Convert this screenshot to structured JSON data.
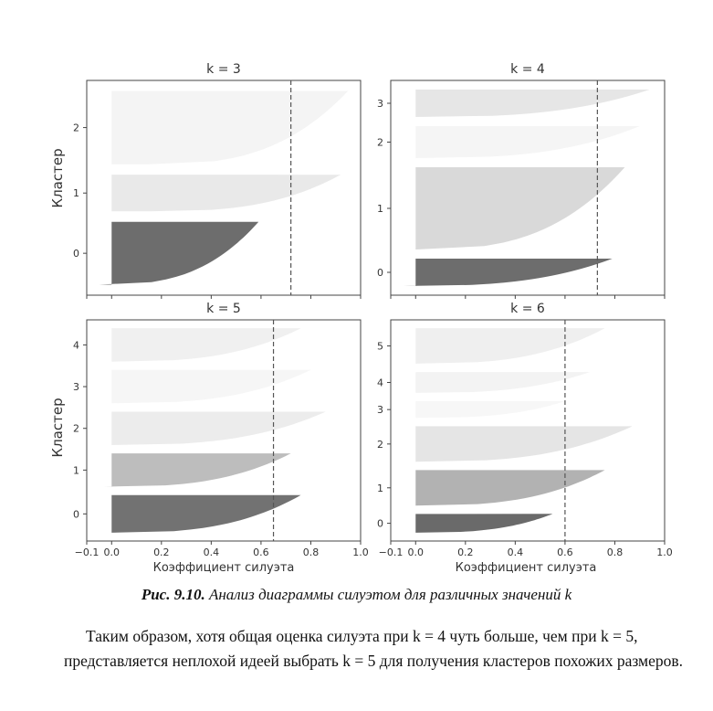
{
  "figure": {
    "caption_prefix": "Рис. 9.10.",
    "caption_text": "Анализ диаграммы силуэтом для различных значений k",
    "ylabel": "Кластер",
    "xlabel": "Коэффициент силуэта"
  },
  "chart_data": [
    {
      "type": "area",
      "title": "k = 3",
      "xlim": [
        -0.1,
        1.0
      ],
      "yticks": [
        "0",
        "1",
        "2"
      ],
      "silhouette_score": 0.72,
      "clusters": [
        {
          "label": "0",
          "size": 0.24,
          "min_coef": -0.05,
          "max_coef": 0.59,
          "shade": "#6d6d6d"
        },
        {
          "label": "1",
          "size": 0.14,
          "min_coef": 0.15,
          "max_coef": 0.92,
          "shade": "#e9e9e9"
        },
        {
          "label": "2",
          "size": 0.28,
          "min_coef": 0.15,
          "max_coef": 0.95,
          "shade": "#f4f4f4"
        }
      ]
    },
    {
      "type": "area",
      "title": "k = 4",
      "xlim": [
        -0.1,
        1.0
      ],
      "yticks": [
        "0",
        "1",
        "2",
        "3"
      ],
      "silhouette_score": 0.73,
      "clusters": [
        {
          "label": "0",
          "size": 0.12,
          "min_coef": -0.05,
          "max_coef": 0.79,
          "shade": "#6d6d6d"
        },
        {
          "label": "1",
          "size": 0.36,
          "min_coef": 0.0,
          "max_coef": 0.84,
          "shade": "#d9d9d9"
        },
        {
          "label": "2",
          "size": 0.14,
          "min_coef": 0.0,
          "max_coef": 0.9,
          "shade": "#f5f5f5"
        },
        {
          "label": "3",
          "size": 0.12,
          "min_coef": 0.0,
          "max_coef": 0.94,
          "shade": "#e6e6e6"
        }
      ]
    },
    {
      "type": "area",
      "title": "k = 5",
      "xlim": [
        -0.1,
        1.0
      ],
      "yticks": [
        "0",
        "1",
        "2",
        "3",
        "4"
      ],
      "xticks": [
        "−0.1",
        "0.0",
        "0.2",
        "0.4",
        "0.6",
        "0.8",
        "1.0"
      ],
      "silhouette_score": 0.65,
      "clusters": [
        {
          "label": "0",
          "size": 0.18,
          "min_coef": 0.0,
          "max_coef": 0.76,
          "shade": "#727272"
        },
        {
          "label": "1",
          "size": 0.16,
          "min_coef": -0.03,
          "max_coef": 0.72,
          "shade": "#bdbdbd"
        },
        {
          "label": "2",
          "size": 0.16,
          "min_coef": 0.0,
          "max_coef": 0.86,
          "shade": "#ececec"
        },
        {
          "label": "3",
          "size": 0.16,
          "min_coef": 0.0,
          "max_coef": 0.8,
          "shade": "#f6f6f6"
        },
        {
          "label": "4",
          "size": 0.16,
          "min_coef": 0.0,
          "max_coef": 0.76,
          "shade": "#f0f0f0"
        }
      ]
    },
    {
      "type": "area",
      "title": "k = 6",
      "xlim": [
        -0.1,
        1.0
      ],
      "yticks": [
        "0",
        "1",
        "2",
        "3",
        "4",
        "5"
      ],
      "xticks": [
        "−0.1",
        "0.0",
        "0.2",
        "0.4",
        "0.6",
        "0.8",
        "1.0"
      ],
      "silhouette_score": 0.6,
      "clusters": [
        {
          "label": "0",
          "size": 0.09,
          "min_coef": 0.0,
          "max_coef": 0.55,
          "shade": "#6a6a6a"
        },
        {
          "label": "1",
          "size": 0.17,
          "min_coef": 0.0,
          "max_coef": 0.76,
          "shade": "#b2b2b2"
        },
        {
          "label": "2",
          "size": 0.17,
          "min_coef": 0.0,
          "max_coef": 0.87,
          "shade": "#e5e5e5"
        },
        {
          "label": "3",
          "size": 0.08,
          "min_coef": 0.0,
          "max_coef": 0.6,
          "shade": "#f7f7f7"
        },
        {
          "label": "4",
          "size": 0.1,
          "min_coef": 0.0,
          "max_coef": 0.7,
          "shade": "#f3f3f3"
        },
        {
          "label": "5",
          "size": 0.17,
          "min_coef": 0.0,
          "max_coef": 0.76,
          "shade": "#efefef"
        }
      ]
    }
  ],
  "paragraph": "Таким образом, хотя общая оценка силуэта при k = 4 чуть больше, чем при k = 5, представляется неплохой идеей выбрать k = 5 для получения кластеров похожих размеров."
}
